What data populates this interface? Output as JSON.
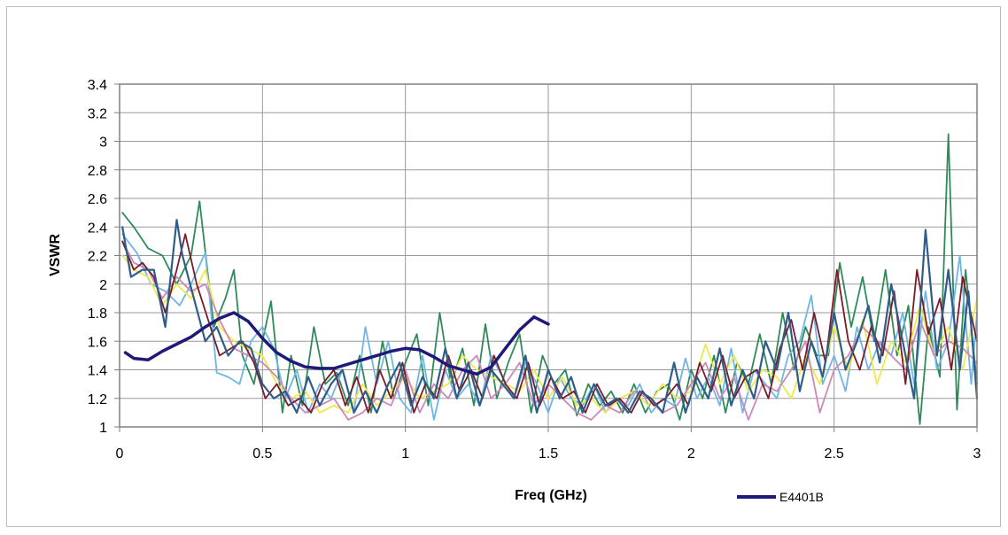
{
  "chart_data": {
    "type": "line",
    "title": "",
    "xlabel": "Freq (GHz)",
    "ylabel": "VSWR",
    "xlim": [
      0,
      3
    ],
    "ylim": [
      1,
      3.4
    ],
    "x_ticks": [
      0,
      0.5,
      1,
      1.5,
      2,
      2.5,
      3
    ],
    "x_tick_labels": [
      "0",
      "0.5",
      "1",
      "1.5",
      "2",
      "2.5",
      "3"
    ],
    "y_ticks": [
      1,
      1.2,
      1.4,
      1.6,
      1.8,
      2,
      2.2,
      2.4,
      2.6,
      2.8,
      3,
      3.2,
      3.4
    ],
    "y_tick_labels": [
      "1",
      "1.2",
      "1.4",
      "1.6",
      "1.8",
      "2",
      "2.2",
      "2.4",
      "2.6",
      "2.8",
      "3",
      "3.2",
      "3.4"
    ],
    "grid": true,
    "legend_position": "bottom-right",
    "legend": [
      {
        "label": "E4401B",
        "series": 0
      }
    ],
    "series": [
      {
        "name": "E4401B",
        "color": "#1f1a7a",
        "width": 3.5,
        "x": [
          0.02,
          0.05,
          0.1,
          0.15,
          0.2,
          0.25,
          0.3,
          0.35,
          0.4,
          0.45,
          0.5,
          0.55,
          0.6,
          0.65,
          0.7,
          0.75,
          0.8,
          0.85,
          0.9,
          0.95,
          1.0,
          1.05,
          1.1,
          1.15,
          1.2,
          1.25,
          1.3,
          1.35,
          1.4,
          1.45,
          1.5
        ],
        "y": [
          1.52,
          1.48,
          1.47,
          1.53,
          1.58,
          1.63,
          1.7,
          1.76,
          1.8,
          1.74,
          1.62,
          1.52,
          1.46,
          1.42,
          1.41,
          1.41,
          1.44,
          1.47,
          1.5,
          1.53,
          1.55,
          1.54,
          1.49,
          1.43,
          1.4,
          1.37,
          1.42,
          1.55,
          1.68,
          1.77,
          1.72
        ]
      },
      {
        "name": "",
        "color": "#2e8b57",
        "width": 1.8,
        "x": [
          0.01,
          0.05,
          0.1,
          0.15,
          0.2,
          0.25,
          0.28,
          0.33,
          0.37,
          0.4,
          0.43,
          0.47,
          0.5,
          0.53,
          0.57,
          0.6,
          0.64,
          0.68,
          0.72,
          0.76,
          0.8,
          0.84,
          0.88,
          0.92,
          0.96,
          1.0,
          1.04,
          1.08,
          1.12,
          1.16,
          1.2,
          1.24,
          1.28,
          1.32,
          1.36,
          1.4,
          1.44,
          1.48,
          1.52,
          1.56,
          1.6,
          1.64,
          1.68,
          1.72,
          1.76,
          1.8,
          1.84,
          1.88,
          1.92,
          1.96,
          2.0,
          2.04,
          2.08,
          2.12,
          2.16,
          2.2,
          2.24,
          2.28,
          2.32,
          2.36,
          2.4,
          2.44,
          2.48,
          2.52,
          2.56,
          2.6,
          2.64,
          2.68,
          2.72,
          2.76,
          2.8,
          2.83,
          2.87,
          2.9,
          2.93,
          2.96,
          3.0
        ],
        "y": [
          2.5,
          2.4,
          2.25,
          2.2,
          2.0,
          2.2,
          2.58,
          1.7,
          1.9,
          2.1,
          1.5,
          1.3,
          1.6,
          1.88,
          1.1,
          1.5,
          1.15,
          1.7,
          1.3,
          1.38,
          1.15,
          1.5,
          1.1,
          1.6,
          1.2,
          1.45,
          1.65,
          1.15,
          1.8,
          1.3,
          1.55,
          1.15,
          1.72,
          1.2,
          1.45,
          1.65,
          1.1,
          1.5,
          1.3,
          1.4,
          1.08,
          1.3,
          1.15,
          1.25,
          1.1,
          1.3,
          1.1,
          1.25,
          1.3,
          1.05,
          1.4,
          1.2,
          1.5,
          1.1,
          1.45,
          1.3,
          1.65,
          1.3,
          1.8,
          1.4,
          1.7,
          1.5,
          1.5,
          2.15,
          1.7,
          2.05,
          1.6,
          2.1,
          1.5,
          1.85,
          1.02,
          1.7,
          1.35,
          3.05,
          1.12,
          2.1,
          1.3
        ]
      },
      {
        "name": "",
        "color": "#6fb6e6",
        "width": 1.8,
        "x": [
          0.01,
          0.06,
          0.11,
          0.16,
          0.21,
          0.25,
          0.3,
          0.34,
          0.38,
          0.42,
          0.46,
          0.5,
          0.54,
          0.58,
          0.62,
          0.66,
          0.7,
          0.74,
          0.78,
          0.82,
          0.86,
          0.9,
          0.94,
          0.98,
          1.02,
          1.06,
          1.1,
          1.14,
          1.18,
          1.22,
          1.26,
          1.3,
          1.34,
          1.38,
          1.42,
          1.46,
          1.5,
          1.54,
          1.58,
          1.62,
          1.66,
          1.7,
          1.74,
          1.78,
          1.82,
          1.86,
          1.9,
          1.94,
          1.98,
          2.02,
          2.06,
          2.1,
          2.14,
          2.18,
          2.22,
          2.26,
          2.3,
          2.34,
          2.38,
          2.42,
          2.46,
          2.5,
          2.54,
          2.58,
          2.62,
          2.66,
          2.7,
          2.74,
          2.78,
          2.82,
          2.86,
          2.9,
          2.94,
          2.98,
          3.0
        ],
        "y": [
          2.35,
          2.22,
          2.0,
          1.95,
          1.85,
          2.0,
          2.22,
          1.38,
          1.35,
          1.3,
          1.6,
          1.7,
          1.55,
          1.2,
          1.4,
          1.1,
          1.3,
          1.2,
          1.4,
          1.1,
          1.7,
          1.3,
          1.6,
          1.2,
          1.1,
          1.5,
          1.05,
          1.4,
          1.2,
          1.3,
          1.15,
          1.5,
          1.35,
          1.2,
          1.45,
          1.3,
          1.1,
          1.35,
          1.2,
          1.15,
          1.3,
          1.1,
          1.2,
          1.15,
          1.3,
          1.1,
          1.2,
          1.15,
          1.48,
          1.2,
          1.35,
          1.15,
          1.55,
          1.1,
          1.4,
          1.3,
          1.2,
          1.5,
          1.6,
          1.92,
          1.3,
          1.5,
          1.25,
          1.7,
          1.4,
          1.6,
          1.5,
          1.8,
          1.3,
          1.95,
          1.4,
          1.6,
          2.2,
          1.3,
          1.8
        ]
      },
      {
        "name": "",
        "color": "#f2e84a",
        "width": 1.8,
        "x": [
          0.01,
          0.05,
          0.1,
          0.15,
          0.2,
          0.25,
          0.3,
          0.35,
          0.4,
          0.45,
          0.5,
          0.55,
          0.6,
          0.65,
          0.7,
          0.75,
          0.8,
          0.85,
          0.9,
          0.95,
          1.0,
          1.05,
          1.1,
          1.15,
          1.2,
          1.25,
          1.3,
          1.35,
          1.4,
          1.45,
          1.5,
          1.55,
          1.6,
          1.65,
          1.7,
          1.75,
          1.8,
          1.85,
          1.9,
          1.95,
          2.0,
          2.05,
          2.1,
          2.15,
          2.2,
          2.25,
          2.3,
          2.35,
          2.4,
          2.45,
          2.5,
          2.55,
          2.6,
          2.65,
          2.7,
          2.75,
          2.8,
          2.85,
          2.9,
          2.95,
          3.0
        ],
        "y": [
          2.2,
          2.1,
          2.05,
          1.85,
          2.0,
          1.9,
          2.1,
          1.7,
          1.6,
          1.55,
          1.5,
          1.3,
          1.2,
          1.25,
          1.1,
          1.15,
          1.1,
          1.3,
          1.15,
          1.25,
          1.35,
          1.2,
          1.25,
          1.3,
          1.5,
          1.4,
          1.35,
          1.3,
          1.25,
          1.4,
          1.2,
          1.35,
          1.15,
          1.2,
          1.1,
          1.2,
          1.25,
          1.15,
          1.3,
          1.2,
          1.25,
          1.58,
          1.3,
          1.5,
          1.25,
          1.4,
          1.35,
          1.2,
          1.5,
          1.3,
          1.7,
          1.4,
          1.75,
          1.3,
          1.6,
          1.45,
          1.85,
          1.5,
          1.7,
          1.4,
          1.9
        ]
      },
      {
        "name": "",
        "color": "#cc88bb",
        "width": 1.8,
        "x": [
          0.01,
          0.05,
          0.1,
          0.15,
          0.2,
          0.25,
          0.3,
          0.35,
          0.4,
          0.45,
          0.5,
          0.55,
          0.6,
          0.65,
          0.7,
          0.75,
          0.8,
          0.85,
          0.9,
          0.95,
          1.0,
          1.05,
          1.1,
          1.15,
          1.2,
          1.25,
          1.3,
          1.35,
          1.4,
          1.45,
          1.5,
          1.55,
          1.6,
          1.65,
          1.7,
          1.75,
          1.8,
          1.85,
          1.9,
          1.95,
          2.0,
          2.05,
          2.1,
          2.15,
          2.2,
          2.25,
          2.3,
          2.35,
          2.4,
          2.45,
          2.5,
          2.55,
          2.6,
          2.65,
          2.7,
          2.75,
          2.8,
          2.85,
          2.9,
          2.95,
          3.0
        ],
        "y": [
          2.3,
          2.15,
          2.1,
          1.9,
          2.05,
          1.95,
          2.0,
          1.75,
          1.55,
          1.5,
          1.45,
          1.35,
          1.2,
          1.1,
          1.15,
          1.2,
          1.05,
          1.1,
          1.2,
          1.15,
          1.4,
          1.1,
          1.3,
          1.2,
          1.4,
          1.5,
          1.2,
          1.3,
          1.45,
          1.15,
          1.3,
          1.2,
          1.1,
          1.05,
          1.15,
          1.1,
          1.25,
          1.2,
          1.1,
          1.15,
          1.3,
          1.45,
          1.2,
          1.35,
          1.05,
          1.3,
          1.25,
          1.4,
          1.6,
          1.1,
          1.4,
          1.5,
          1.7,
          1.6,
          1.5,
          1.4,
          1.75,
          1.5,
          1.6,
          1.55,
          1.45
        ]
      },
      {
        "name": "",
        "color": "#7a1a2a",
        "width": 1.8,
        "x": [
          0.01,
          0.05,
          0.08,
          0.12,
          0.16,
          0.2,
          0.23,
          0.27,
          0.31,
          0.35,
          0.39,
          0.43,
          0.47,
          0.51,
          0.55,
          0.59,
          0.63,
          0.67,
          0.71,
          0.75,
          0.79,
          0.83,
          0.87,
          0.91,
          0.95,
          0.99,
          1.03,
          1.07,
          1.11,
          1.15,
          1.19,
          1.23,
          1.27,
          1.31,
          1.35,
          1.39,
          1.43,
          1.47,
          1.51,
          1.55,
          1.59,
          1.63,
          1.67,
          1.71,
          1.75,
          1.79,
          1.83,
          1.87,
          1.91,
          1.95,
          1.99,
          2.03,
          2.07,
          2.11,
          2.15,
          2.19,
          2.23,
          2.27,
          2.31,
          2.35,
          2.39,
          2.43,
          2.47,
          2.51,
          2.55,
          2.59,
          2.63,
          2.67,
          2.71,
          2.75,
          2.79,
          2.83,
          2.87,
          2.91,
          2.95,
          3.0
        ],
        "y": [
          2.3,
          2.1,
          2.15,
          2.05,
          1.8,
          2.1,
          2.35,
          2.0,
          1.75,
          1.5,
          1.55,
          1.6,
          1.45,
          1.2,
          1.3,
          1.15,
          1.2,
          1.1,
          1.3,
          1.4,
          1.15,
          1.35,
          1.1,
          1.4,
          1.2,
          1.45,
          1.1,
          1.3,
          1.2,
          1.5,
          1.25,
          1.4,
          1.2,
          1.5,
          1.3,
          1.2,
          1.45,
          1.15,
          1.35,
          1.2,
          1.25,
          1.1,
          1.3,
          1.15,
          1.2,
          1.1,
          1.25,
          1.15,
          1.2,
          1.3,
          1.15,
          1.45,
          1.25,
          1.5,
          1.2,
          1.35,
          1.4,
          1.2,
          1.55,
          1.75,
          1.4,
          1.8,
          1.45,
          2.1,
          1.6,
          1.4,
          1.7,
          1.5,
          1.95,
          1.3,
          2.1,
          1.65,
          1.9,
          1.4,
          2.05,
          1.6
        ]
      },
      {
        "name": "",
        "color": "#2f5d8a",
        "width": 2.2,
        "x": [
          0.01,
          0.04,
          0.08,
          0.12,
          0.16,
          0.2,
          0.22,
          0.26,
          0.3,
          0.34,
          0.38,
          0.42,
          0.46,
          0.5,
          0.54,
          0.58,
          0.62,
          0.66,
          0.7,
          0.74,
          0.78,
          0.82,
          0.86,
          0.9,
          0.94,
          0.98,
          1.02,
          1.06,
          1.1,
          1.14,
          1.18,
          1.22,
          1.26,
          1.3,
          1.34,
          1.38,
          1.42,
          1.46,
          1.5,
          1.54,
          1.58,
          1.62,
          1.66,
          1.7,
          1.74,
          1.78,
          1.82,
          1.86,
          1.9,
          1.94,
          1.98,
          2.02,
          2.06,
          2.1,
          2.14,
          2.18,
          2.22,
          2.26,
          2.3,
          2.34,
          2.38,
          2.42,
          2.46,
          2.5,
          2.54,
          2.58,
          2.62,
          2.66,
          2.7,
          2.74,
          2.78,
          2.82,
          2.86,
          2.9,
          2.94,
          2.97,
          3.0
        ],
        "y": [
          2.4,
          2.05,
          2.1,
          2.1,
          1.7,
          2.45,
          2.2,
          1.9,
          1.6,
          1.7,
          1.5,
          1.6,
          1.55,
          1.3,
          1.2,
          1.25,
          1.1,
          1.35,
          1.15,
          1.3,
          1.4,
          1.1,
          1.25,
          1.1,
          1.3,
          1.45,
          1.15,
          1.35,
          1.2,
          1.55,
          1.2,
          1.45,
          1.15,
          1.4,
          1.3,
          1.2,
          1.5,
          1.1,
          1.4,
          1.2,
          1.35,
          1.1,
          1.3,
          1.15,
          1.2,
          1.1,
          1.25,
          1.2,
          1.1,
          1.45,
          1.1,
          1.35,
          1.2,
          1.55,
          1.15,
          1.4,
          1.2,
          1.6,
          1.4,
          1.8,
          1.25,
          1.6,
          1.35,
          1.8,
          1.4,
          1.6,
          1.85,
          1.45,
          2.0,
          1.6,
          1.2,
          2.38,
          1.5,
          2.1,
          1.4,
          1.95,
          1.2
        ]
      }
    ]
  }
}
